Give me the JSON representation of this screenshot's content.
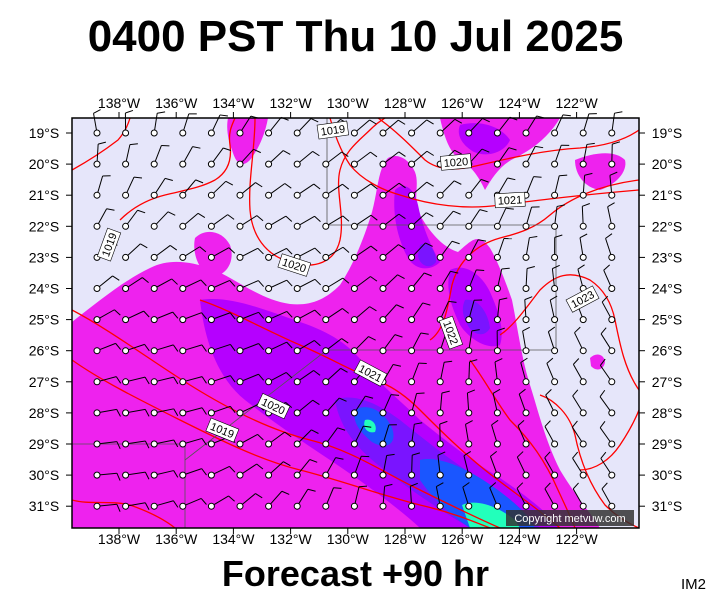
{
  "title": "0400 PST Thu 10 Jul 2025",
  "footer": "Forecast +90 hr",
  "corner_label": "IM2",
  "copyright": "Copyright metvuw.com",
  "lon_labels": [
    "138°W",
    "136°W",
    "134°W",
    "132°W",
    "130°W",
    "128°W",
    "126°W",
    "124°W",
    "122°W"
  ],
  "lat_labels": [
    "19°S",
    "20°S",
    "21°S",
    "22°S",
    "23°S",
    "24°S",
    "25°S",
    "26°S",
    "27°S",
    "28°S",
    "29°S",
    "30°S",
    "31°S"
  ],
  "isobar_labels": [
    {
      "text": "1019"
    },
    {
      "text": "1020"
    },
    {
      "text": "1021"
    },
    {
      "text": "1022"
    },
    {
      "text": "1023"
    },
    {
      "text": "1020"
    },
    {
      "text": "1021"
    },
    {
      "text": "1022"
    },
    {
      "text": "1020"
    },
    {
      "text": "1019"
    }
  ],
  "colors": {
    "background_map": "#e6e6fa",
    "rain_light": "#ee22ee",
    "rain_medium": "#b500ff",
    "rain_heavy": "#7a14ff",
    "rain_very_heavy": "#1a56ff",
    "rain_extreme": "#22ffbb",
    "isobar": "#ff0000"
  }
}
